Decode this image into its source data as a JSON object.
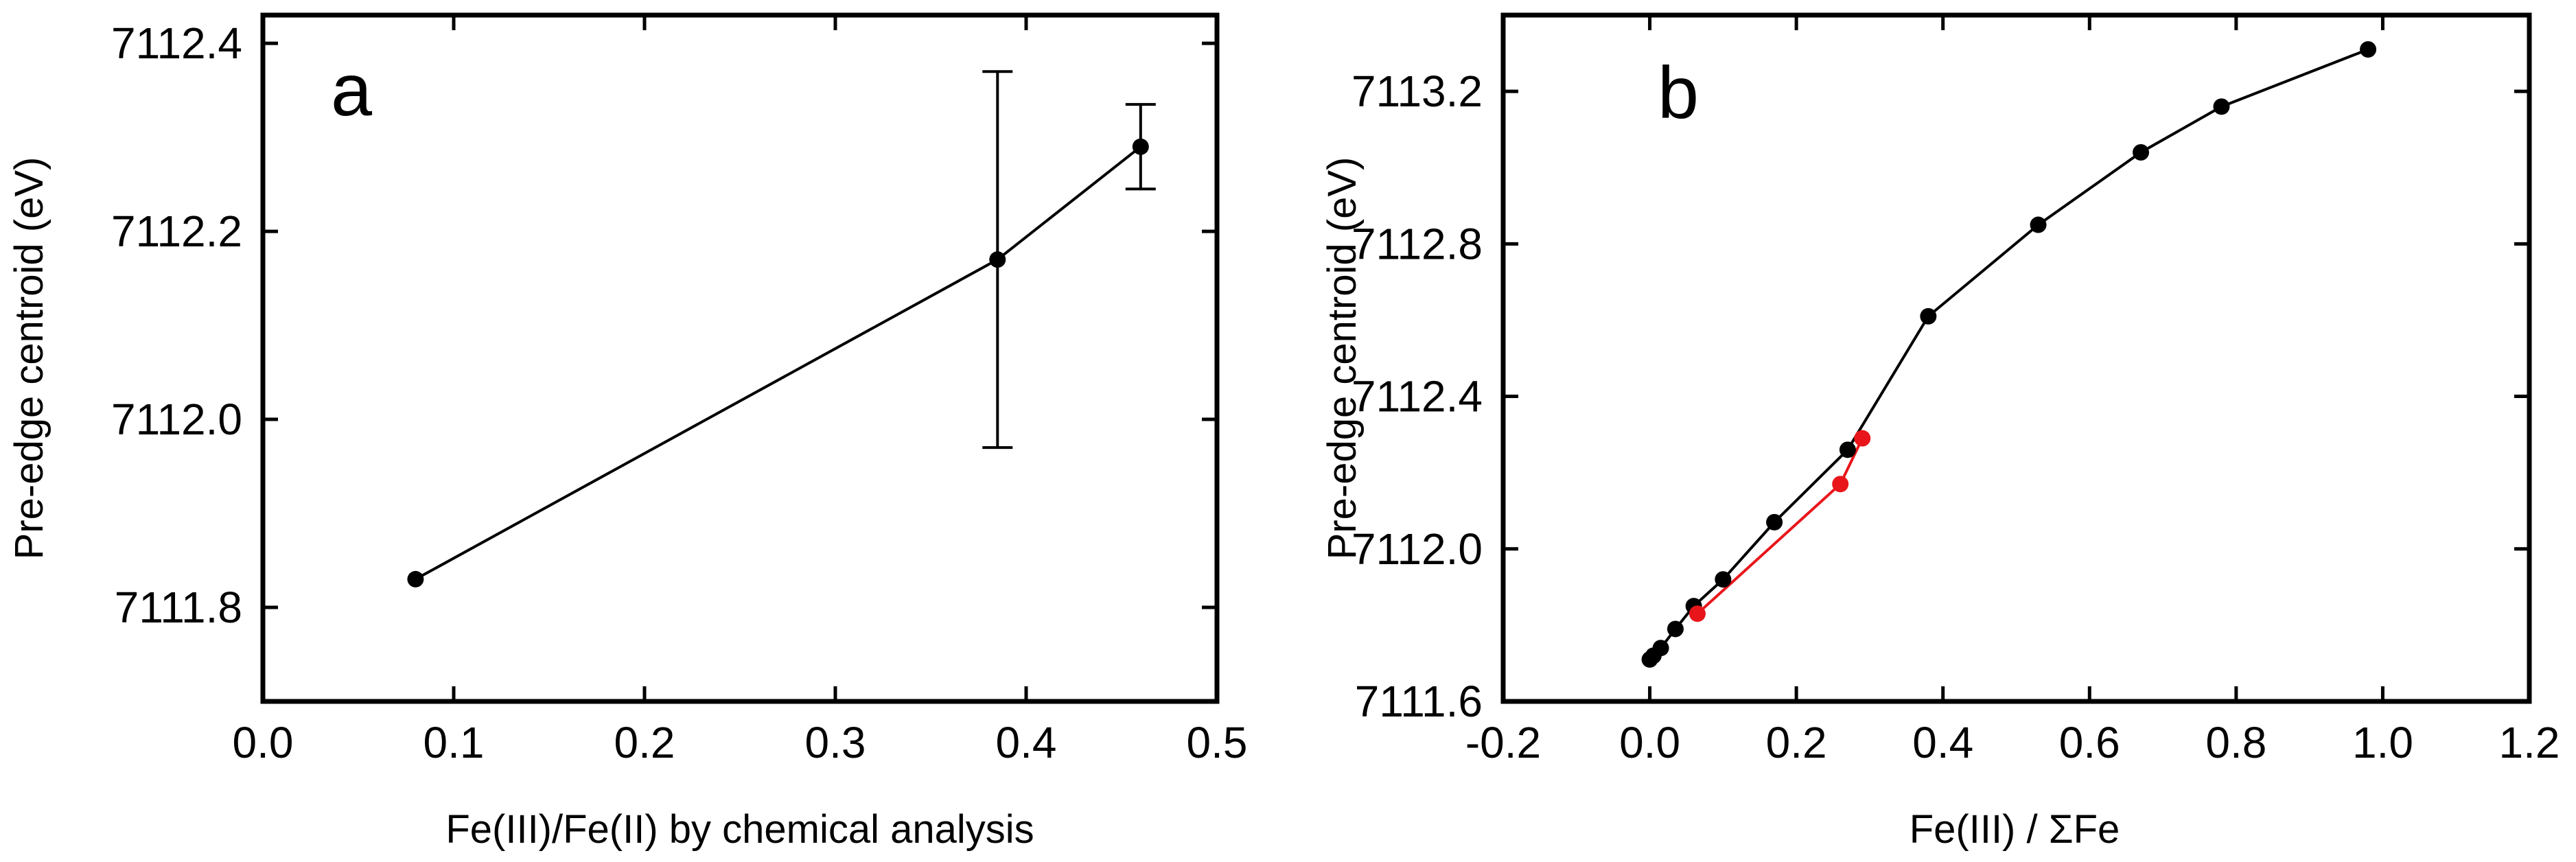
{
  "chart_data": [
    {
      "type": "line",
      "panel_label": "a",
      "xlabel": "Fe(III)/Fe(II) by chemical analysis",
      "ylabel": "Pre-edge centroid (eV)",
      "xlim": [
        0.0,
        0.5
      ],
      "ylim": [
        7111.7,
        7112.43
      ],
      "xticks": [
        0.0,
        0.1,
        0.2,
        0.3,
        0.4,
        0.5
      ],
      "yticks": [
        7111.8,
        7112.0,
        7112.2,
        7112.4
      ],
      "xtick_labels": [
        "0.0",
        "0.1",
        "0.2",
        "0.3",
        "0.4",
        "0.5"
      ],
      "ytick_labels": [
        "7111.8",
        "7112.0",
        "7112.2",
        "7112.4"
      ],
      "grid": false,
      "series": [
        {
          "color": "#000000",
          "x": [
            0.08,
            0.385,
            0.46
          ],
          "y": [
            7111.83,
            7112.17,
            7112.29
          ],
          "yerr": [
            0,
            0.2,
            0.045
          ]
        }
      ]
    },
    {
      "type": "line",
      "panel_label": "b",
      "xlabel": "Fe(III) / ΣFe",
      "ylabel": "Pre-edge centroid (eV)",
      "xlim": [
        -0.2,
        1.2
      ],
      "ylim": [
        7111.6,
        7113.4
      ],
      "xticks": [
        -0.2,
        0.0,
        0.2,
        0.4,
        0.6,
        0.8,
        1.0,
        1.2
      ],
      "yticks": [
        7111.6,
        7112.0,
        7112.4,
        7112.8,
        7113.2
      ],
      "xtick_labels": [
        "-0.2",
        "0.0",
        "0.2",
        "0.4",
        "0.6",
        "0.8",
        "1.0",
        "1.2"
      ],
      "ytick_labels": [
        "7111.6",
        "7112.0",
        "7112.4",
        "7112.8",
        "7113.2"
      ],
      "grid": false,
      "series": [
        {
          "color": "#000000",
          "x": [
            0.0,
            0.005,
            0.015,
            0.035,
            0.06,
            0.1,
            0.17,
            0.27,
            0.38,
            0.53,
            0.67,
            0.78,
            0.98
          ],
          "y": [
            7111.71,
            7111.72,
            7111.74,
            7111.79,
            7111.85,
            7111.92,
            7112.07,
            7112.26,
            7112.61,
            7112.85,
            7113.04,
            7113.16,
            7113.31
          ]
        },
        {
          "color": "#e8161b",
          "x": [
            0.065,
            0.26,
            0.29
          ],
          "y": [
            7111.83,
            7112.17,
            7112.29
          ]
        }
      ]
    }
  ]
}
